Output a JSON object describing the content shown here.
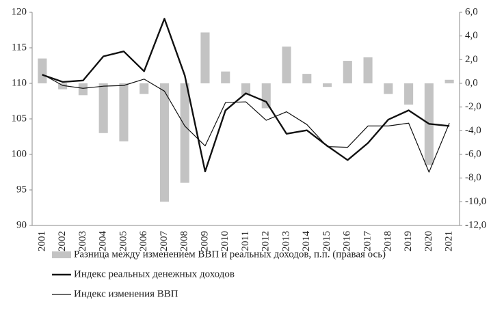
{
  "chart_data": {
    "type": "bar_line",
    "categories": [
      "2001",
      "2002",
      "2003",
      "2004",
      "2005",
      "2006",
      "2007",
      "2008",
      "2009",
      "2010",
      "2011",
      "2012",
      "2013",
      "2014",
      "2015",
      "2016",
      "2017",
      "2018",
      "2019",
      "2020",
      "2021"
    ],
    "series": [
      {
        "name": "Разница между изменением ВВП и реальных доходов, п.п. (правая ось)",
        "type": "bar",
        "axis": "y2",
        "color": "#c3c3c3",
        "values": [
          2.1,
          -0.5,
          -1.0,
          -4.2,
          -4.9,
          -0.9,
          -10.0,
          -8.4,
          4.3,
          1.0,
          -1.0,
          -2.1,
          3.1,
          0.8,
          -0.3,
          1.9,
          2.2,
          -0.9,
          -1.8,
          -6.9,
          0.3
        ]
      },
      {
        "name": "Индекс реальных денежных доходов",
        "type": "line",
        "axis": "y",
        "color": "#111111",
        "width": 2.4,
        "values": [
          111.2,
          110.2,
          110.4,
          113.8,
          114.5,
          111.7,
          119.1,
          111.1,
          97.6,
          106.2,
          108.6,
          107.4,
          102.9,
          103.4,
          101.2,
          99.2,
          101.6,
          104.9,
          106.2,
          104.3,
          104.0
        ]
      },
      {
        "name": "Индекс изменения ВВП",
        "type": "line",
        "axis": "y",
        "color": "#111111",
        "width": 1.2,
        "values": [
          111.3,
          109.7,
          109.3,
          109.6,
          109.7,
          110.6,
          108.9,
          104.0,
          101.2,
          107.3,
          107.4,
          104.8,
          106.0,
          104.2,
          101.1,
          101.0,
          104.0,
          104.0,
          104.4,
          97.5,
          104.4
        ]
      }
    ],
    "ylim": [
      90,
      120
    ],
    "yticks": [
      90,
      95,
      100,
      105,
      110,
      115,
      120
    ],
    "y2lim": [
      -12,
      6
    ],
    "y2ticks": [
      {
        "value": -12,
        "label": "-12,0"
      },
      {
        "value": -10,
        "label": "-10,0"
      },
      {
        "value": -8,
        "label": "-8,0"
      },
      {
        "value": -6,
        "label": "-6,0"
      },
      {
        "value": -4,
        "label": "-4,0"
      },
      {
        "value": -2,
        "label": "-2,0"
      },
      {
        "value": 0,
        "label": "0,0"
      },
      {
        "value": 2,
        "label": "2,0"
      },
      {
        "value": 4,
        "label": "4,0"
      },
      {
        "value": 6,
        "label": "6,0"
      }
    ],
    "legend": "bottom"
  }
}
